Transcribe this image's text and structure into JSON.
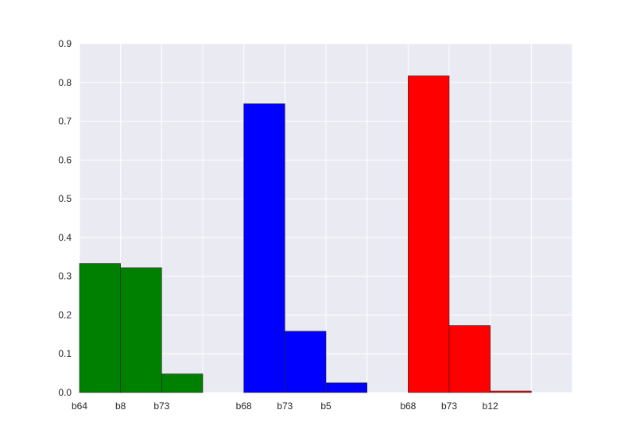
{
  "chart_data": {
    "type": "bar",
    "title": "",
    "xlabel": "",
    "ylabel": "",
    "ylim": [
      0,
      0.9
    ],
    "yticks": [
      "0.0",
      "0.1",
      "0.2",
      "0.3",
      "0.4",
      "0.5",
      "0.6",
      "0.7",
      "0.8",
      "0.9"
    ],
    "xlim": [
      0,
      12
    ],
    "grid": true,
    "legend": "none",
    "colors": {
      "background": "#EAEAF2",
      "grid": "#FFFFFF",
      "green": "#008000",
      "blue": "#0000FF",
      "red": "#FF0000",
      "edge": "#262626"
    },
    "bars": [
      {
        "x": 0,
        "label": "b64",
        "value": 0.333,
        "color": "green"
      },
      {
        "x": 1,
        "label": "b8",
        "value": 0.322,
        "color": "green"
      },
      {
        "x": 2,
        "label": "b73",
        "value": 0.048,
        "color": "green"
      },
      {
        "x": 4,
        "label": "b68",
        "value": 0.745,
        "color": "blue"
      },
      {
        "x": 5,
        "label": "b73",
        "value": 0.158,
        "color": "blue"
      },
      {
        "x": 6,
        "label": "b5",
        "value": 0.025,
        "color": "blue"
      },
      {
        "x": 8,
        "label": "b68",
        "value": 0.817,
        "color": "red"
      },
      {
        "x": 9,
        "label": "b73",
        "value": 0.173,
        "color": "red"
      },
      {
        "x": 10,
        "label": "b12",
        "value": 0.004,
        "color": "red"
      }
    ]
  }
}
